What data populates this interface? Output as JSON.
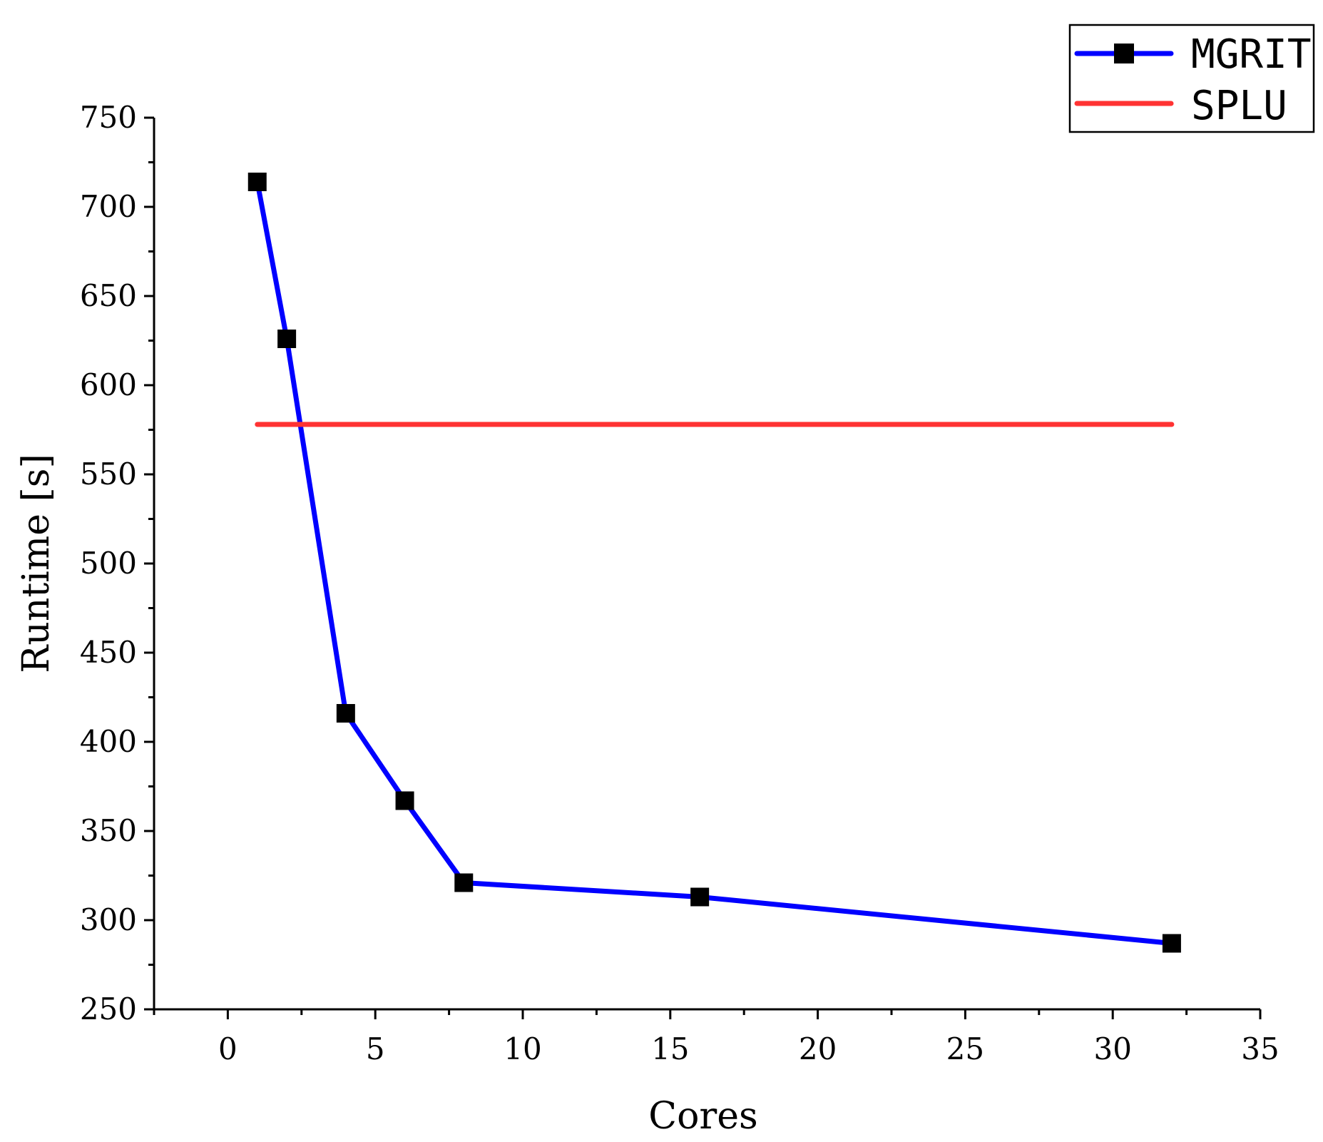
{
  "chart_data": {
    "type": "line",
    "title": "",
    "xlabel": "Cores",
    "ylabel": "Runtime [s]",
    "xlim": [
      -2.5,
      35
    ],
    "ylim": [
      250,
      750
    ],
    "x_ticks": [
      "0",
      "5",
      "10",
      "15",
      "20",
      "25",
      "30",
      "35"
    ],
    "y_ticks": [
      "250",
      "300",
      "350",
      "400",
      "450",
      "500",
      "550",
      "600",
      "650",
      "700",
      "750"
    ],
    "grid": false,
    "legend_position": "top-right",
    "series": [
      {
        "name": "MGRIT",
        "color": "#0000ff",
        "marker": "square",
        "x": [
          1,
          2,
          4,
          6,
          8,
          16,
          32
        ],
        "y": [
          714,
          626,
          416,
          367,
          321,
          313,
          287
        ]
      },
      {
        "name": "SPLU",
        "color": "#ff3333",
        "marker": "none",
        "x": [
          1,
          32
        ],
        "y": [
          578,
          578
        ]
      }
    ]
  }
}
